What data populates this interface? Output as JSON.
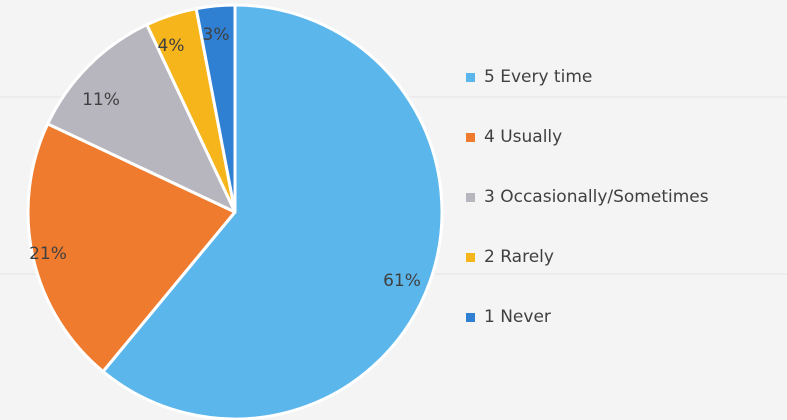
{
  "chart_data": {
    "type": "pie",
    "title": "",
    "start_angle_deg": 0,
    "direction": "clockwise",
    "legend_position": "right",
    "slices": [
      {
        "label": "5 Every time",
        "value": 61,
        "display": "61%",
        "color": "#5bb6ec"
      },
      {
        "label": "4 Usually",
        "value": 21,
        "display": "21%",
        "color": "#ef7b2f"
      },
      {
        "label": "3 Occasionally/Sometimes",
        "value": 11,
        "display": "11%",
        "color": "#b7b6bf"
      },
      {
        "label": "2 Rarely",
        "value": 4,
        "display": "4%",
        "color": "#f5b51b"
      },
      {
        "label": "1 Never",
        "value": 3,
        "display": "3%",
        "color": "#2f7fd2"
      }
    ]
  }
}
